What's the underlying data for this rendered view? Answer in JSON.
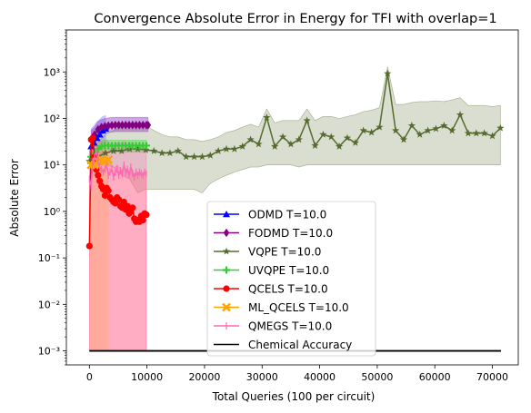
{
  "chart_data": {
    "type": "line",
    "title": "Convergence Absolute Error in Energy for TFI with overlap=1",
    "xlabel": "Total Queries (100 per circuit)",
    "ylabel": "Absolute Error",
    "xlim": [
      -4000,
      74500
    ],
    "ylim": [
      0.0005,
      8000
    ],
    "yscale": "log",
    "grid": false,
    "legend_position": "lower-center",
    "x_ticks": [
      0,
      10000,
      20000,
      30000,
      40000,
      50000,
      60000,
      70000
    ],
    "x_tick_labels": [
      "0",
      "10000",
      "20000",
      "30000",
      "40000",
      "50000",
      "60000",
      "70000"
    ],
    "y_ticks": [
      0.001,
      0.01,
      0.1,
      1,
      10,
      100,
      1000
    ],
    "y_tick_labels": [
      "10⁻³",
      "10⁻²",
      "10⁻¹",
      "10⁰",
      "10¹",
      "10²",
      "10³"
    ],
    "series": [
      {
        "name": "ODMD T=10.0",
        "color": "#0000ff",
        "marker": "triangle",
        "band_color": "#8080ff",
        "x": [
          300,
          800,
          1300,
          1800,
          2300,
          2800
        ],
        "y": [
          25,
          30,
          38,
          45,
          55,
          60
        ],
        "lower": [
          5,
          6,
          8,
          10,
          12,
          14
        ],
        "upper": [
          60,
          70,
          85,
          95,
          110,
          115
        ]
      },
      {
        "name": "FODMD T=10.0",
        "color": "#800080",
        "marker": "diamond",
        "band_color": "#9932cc",
        "x": [
          300,
          900,
          1500,
          2100,
          2700,
          3300,
          3900,
          4500,
          5100,
          5700,
          6300,
          6900,
          7500,
          8100,
          8700,
          9300,
          9900,
          10200
        ],
        "y": [
          35,
          45,
          58,
          65,
          68,
          70,
          71,
          72,
          72,
          72,
          72,
          72,
          72,
          72,
          72,
          72,
          72,
          72
        ],
        "lower": [
          20,
          28,
          38,
          45,
          48,
          50,
          51,
          52,
          52,
          52,
          52,
          52,
          52,
          52,
          52,
          52,
          52,
          52
        ],
        "upper": [
          55,
          65,
          85,
          95,
          100,
          103,
          105,
          106,
          106,
          106,
          106,
          106,
          106,
          106,
          106,
          106,
          106,
          106
        ]
      },
      {
        "name": "VQPE T=10.0",
        "color": "#556b2f",
        "marker": "star",
        "band_color": "#556b2f",
        "x": [
          0,
          1400,
          2800,
          4200,
          5600,
          7000,
          8400,
          9800,
          11200,
          12600,
          14000,
          15400,
          16800,
          18200,
          19600,
          21000,
          22400,
          23800,
          25200,
          26600,
          28000,
          29400,
          30800,
          32200,
          33600,
          35000,
          36400,
          37800,
          39200,
          40600,
          42000,
          43400,
          44800,
          46200,
          47600,
          49000,
          50400,
          51800,
          53200,
          54600,
          56000,
          57400,
          58800,
          60200,
          61600,
          63000,
          64400,
          65800,
          67200,
          68600,
          70000,
          71400
        ],
        "y": [
          12,
          15,
          18,
          20,
          20,
          22,
          22,
          21,
          20,
          18,
          18,
          20,
          15,
          15,
          15,
          16,
          20,
          22,
          22,
          25,
          35,
          28,
          105,
          25,
          40,
          28,
          35,
          90,
          26,
          45,
          40,
          25,
          38,
          30,
          55,
          50,
          65,
          920,
          55,
          35,
          70,
          45,
          55,
          60,
          70,
          55,
          120,
          48,
          48,
          48,
          42,
          62
        ],
        "lower": [
          9,
          10,
          10,
          9,
          6,
          5,
          2.5,
          3,
          3,
          3,
          3,
          3,
          3,
          3,
          2.5,
          4,
          5,
          6,
          7,
          8,
          9,
          9,
          10,
          10,
          10,
          10,
          9,
          10,
          10,
          10,
          10,
          10,
          10,
          10,
          10,
          10,
          10,
          10,
          10,
          10,
          10,
          10,
          10,
          10,
          10,
          10,
          10,
          10,
          10,
          10,
          10,
          10
        ],
        "upper": [
          20,
          30,
          45,
          55,
          65,
          75,
          75,
          70,
          55,
          45,
          40,
          40,
          35,
          35,
          32,
          35,
          40,
          50,
          55,
          65,
          75,
          65,
          160,
          80,
          90,
          90,
          90,
          160,
          90,
          110,
          110,
          100,
          110,
          120,
          140,
          150,
          170,
          1300,
          200,
          200,
          220,
          230,
          230,
          240,
          230,
          250,
          280,
          190,
          190,
          190,
          180,
          190
        ]
      },
      {
        "name": "UVQPE T=10.0",
        "color": "#32cd32",
        "marker": "plus",
        "band_color": "#32cd32",
        "x": [
          300,
          900,
          1500,
          2100,
          2700,
          3300,
          3900,
          4500,
          5100,
          5700,
          6300,
          6900,
          7500,
          8100,
          8700,
          9300,
          9900
        ],
        "y": [
          15,
          18,
          22,
          25,
          26,
          26,
          26,
          26,
          26,
          26,
          26,
          26,
          26,
          26,
          26,
          26,
          26
        ],
        "lower": [
          10,
          12,
          15,
          18,
          19,
          19,
          19,
          19,
          19,
          19,
          19,
          19,
          19,
          19,
          19,
          19,
          19
        ],
        "upper": [
          22,
          25,
          30,
          33,
          34,
          34,
          34,
          34,
          34,
          34,
          34,
          34,
          34,
          34,
          34,
          34,
          34
        ]
      },
      {
        "name": "QCELS T=10.0",
        "color": "#ff0000",
        "marker": "circle",
        "band_color": "#ff6666",
        "x": [
          0,
          300,
          600,
          900,
          1200,
          1500,
          1800,
          2100,
          2400,
          2700,
          3000,
          3300,
          3600,
          3900,
          4200,
          4500,
          4800,
          5100,
          5400,
          5700,
          6000,
          6300,
          6600,
          6900,
          7200,
          7500,
          7800,
          8100,
          8400,
          8700,
          9000,
          9300,
          9600,
          9900
        ],
        "y": [
          0.18,
          35,
          38,
          15,
          8,
          6,
          4.5,
          3.5,
          3,
          2.2,
          3.2,
          2.8,
          2,
          1.8,
          1.6,
          1.5,
          2,
          1.8,
          1.3,
          1.2,
          1.6,
          1.1,
          1.3,
          0.9,
          1,
          1.2,
          0.7,
          0.6,
          0.65,
          0.6,
          0.8,
          0.65,
          0.9,
          0.85
        ],
        "lower": [
          0.001,
          0.001,
          0.001,
          0.001,
          0.001,
          0.001,
          0.001,
          0.001,
          0.001,
          0.001,
          0.001,
          0.001,
          0.001,
          0.001,
          0.001,
          0.001,
          0.001,
          0.001,
          0.001,
          0.001,
          0.001,
          0.001,
          0.001,
          0.001,
          0.001,
          0.001,
          0.001,
          0.001,
          0.001,
          0.001,
          0.001,
          0.001,
          0.001,
          0.001
        ],
        "upper": [
          1,
          45,
          55,
          40,
          30,
          25,
          20,
          18,
          15,
          12,
          14,
          13,
          11,
          10,
          9,
          9,
          10,
          9,
          8,
          8,
          9,
          8,
          8,
          7,
          7,
          8,
          6,
          6,
          6,
          6,
          7,
          6,
          7,
          7
        ]
      },
      {
        "name": "ML_QCELS T=10.0",
        "color": "#ffa500",
        "marker": "x",
        "band_color": "#ffc04d",
        "x": [
          300,
          900,
          1500,
          2100,
          2700,
          3300
        ],
        "y": [
          10,
          10,
          12,
          13,
          12,
          13
        ],
        "lower": [
          0.001,
          0.001,
          0.001,
          0.001,
          0.001,
          0.001
        ],
        "upper": [
          25,
          28,
          30,
          30,
          28,
          30
        ]
      },
      {
        "name": "QMEGS T=10.0",
        "color": "#ff69b4",
        "marker": "tick",
        "band_color": "#ff69b4",
        "x": [
          0,
          300,
          600,
          900,
          1200,
          1500,
          1800,
          2100,
          2400,
          2700,
          3000,
          3300,
          3600,
          3900,
          4200,
          4500,
          4800,
          5100,
          5400,
          5700,
          6000,
          6300,
          6600,
          6900,
          7200,
          7500,
          7800,
          8100,
          8400,
          8700,
          9000,
          9300,
          9600,
          9900
        ],
        "y": [
          5,
          3.5,
          12,
          15,
          20,
          12,
          9,
          8,
          7,
          8,
          10,
          6,
          7,
          8,
          5.5,
          7,
          8,
          6,
          7.5,
          6.5,
          10,
          7,
          8,
          6,
          9,
          6.5,
          5.5,
          7,
          6,
          7,
          6.5,
          6,
          7,
          6.5
        ],
        "lower": [
          0.001,
          0.001,
          0.001,
          0.001,
          0.001,
          0.001,
          0.001,
          0.001,
          0.001,
          0.001,
          0.001,
          0.001,
          0.001,
          0.001,
          0.001,
          0.001,
          0.001,
          0.001,
          0.001,
          0.001,
          0.001,
          0.001,
          0.001,
          0.001,
          0.001,
          0.001,
          0.001,
          0.001,
          0.001,
          0.001,
          0.001,
          0.001,
          0.001,
          0.001
        ],
        "upper": [
          20,
          25,
          35,
          40,
          45,
          40,
          35,
          30,
          30,
          30,
          35,
          28,
          28,
          30,
          25,
          28,
          30,
          25,
          28,
          26,
          32,
          26,
          28,
          24,
          30,
          25,
          22,
          26,
          24,
          26,
          25,
          24,
          26,
          25
        ]
      },
      {
        "name": "Chemical Accuracy",
        "color": "#000000",
        "marker": "none",
        "x": [
          0,
          71500
        ],
        "y": [
          0.001,
          0.001
        ]
      }
    ]
  }
}
